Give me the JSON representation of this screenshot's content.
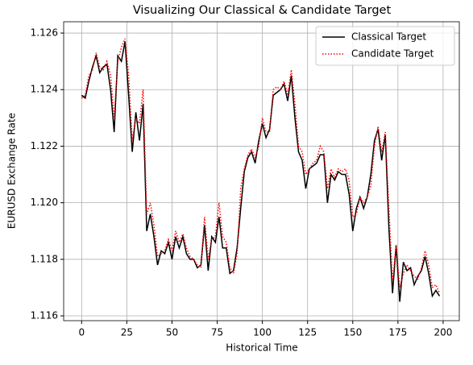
{
  "chart_data": {
    "type": "line",
    "title": "Visualizing Our Classical & Candidate Target",
    "x_label": "Historical Time",
    "y_label": "EURUSD Exchange Rate",
    "x": [
      0,
      2,
      4,
      6,
      8,
      10,
      12,
      14,
      16,
      18,
      20,
      22,
      24,
      26,
      28,
      30,
      32,
      34,
      36,
      38,
      40,
      42,
      44,
      46,
      48,
      50,
      52,
      54,
      56,
      58,
      60,
      62,
      64,
      66,
      68,
      70,
      72,
      74,
      76,
      78,
      80,
      82,
      84,
      86,
      88,
      90,
      92,
      94,
      96,
      98,
      100,
      102,
      104,
      106,
      108,
      110,
      112,
      114,
      116,
      118,
      120,
      122,
      124,
      126,
      128,
      130,
      132,
      134,
      136,
      138,
      140,
      142,
      144,
      146,
      148,
      150,
      152,
      154,
      156,
      158,
      160,
      162,
      164,
      166,
      168,
      170,
      172,
      174,
      176,
      178,
      180,
      182,
      184,
      186,
      188,
      190,
      192,
      194,
      196,
      198
    ],
    "series": [
      {
        "name": "Classical Target",
        "color": "#000000",
        "linestyle": "solid",
        "values": [
          1.1238,
          1.1237,
          1.1243,
          1.1248,
          1.1252,
          1.1246,
          1.1248,
          1.1249,
          1.124,
          1.1225,
          1.1252,
          1.125,
          1.1257,
          1.1238,
          1.1218,
          1.1232,
          1.1222,
          1.1235,
          1.119,
          1.1196,
          1.1188,
          1.1178,
          1.1183,
          1.1182,
          1.1186,
          1.118,
          1.1188,
          1.1184,
          1.1188,
          1.1182,
          1.118,
          1.118,
          1.1177,
          1.1178,
          1.1192,
          1.1176,
          1.1188,
          1.1186,
          1.1195,
          1.1184,
          1.1184,
          1.1175,
          1.1176,
          1.1184,
          1.1198,
          1.1211,
          1.1216,
          1.1218,
          1.1214,
          1.1222,
          1.1228,
          1.1223,
          1.1226,
          1.1238,
          1.1239,
          1.124,
          1.1242,
          1.1236,
          1.1245,
          1.123,
          1.1218,
          1.1215,
          1.1205,
          1.1212,
          1.1213,
          1.1214,
          1.1217,
          1.1217,
          1.12,
          1.121,
          1.1208,
          1.1211,
          1.121,
          1.121,
          1.1203,
          1.119,
          1.1198,
          1.1202,
          1.1198,
          1.1202,
          1.121,
          1.1222,
          1.1226,
          1.1215,
          1.1224,
          1.1191,
          1.1168,
          1.1185,
          1.1165,
          1.1179,
          1.1176,
          1.1177,
          1.1171,
          1.1174,
          1.1176,
          1.1181,
          1.1175,
          1.1167,
          1.1169,
          1.1167
        ]
      },
      {
        "name": "Candidate Target",
        "color": "#ff0000",
        "linestyle": "dotted",
        "values": [
          1.1237,
          1.1238,
          1.1245,
          1.1247,
          1.1253,
          1.1248,
          1.1247,
          1.125,
          1.1245,
          1.123,
          1.125,
          1.1255,
          1.1258,
          1.1245,
          1.1222,
          1.123,
          1.1228,
          1.124,
          1.1196,
          1.12,
          1.1192,
          1.1181,
          1.1182,
          1.1183,
          1.1187,
          1.1183,
          1.119,
          1.1186,
          1.1189,
          1.1184,
          1.1181,
          1.118,
          1.1178,
          1.1177,
          1.1195,
          1.118,
          1.1187,
          1.1188,
          1.12,
          1.1188,
          1.1186,
          1.1177,
          1.1175,
          1.1182,
          1.1205,
          1.1212,
          1.1217,
          1.1219,
          1.1216,
          1.122,
          1.123,
          1.1225,
          1.1225,
          1.124,
          1.1241,
          1.124,
          1.1243,
          1.1238,
          1.1247,
          1.1235,
          1.122,
          1.1218,
          1.121,
          1.1212,
          1.1214,
          1.1215,
          1.122,
          1.1218,
          1.1205,
          1.1212,
          1.1209,
          1.1212,
          1.1211,
          1.1212,
          1.1208,
          1.1195,
          1.1196,
          1.1202,
          1.12,
          1.1202,
          1.1206,
          1.122,
          1.1227,
          1.1218,
          1.1225,
          1.1198,
          1.1172,
          1.1185,
          1.117,
          1.1175,
          1.1178,
          1.1176,
          1.1174,
          1.1173,
          1.1177,
          1.1183,
          1.1178,
          1.117,
          1.1171,
          1.1168
        ]
      }
    ],
    "xlim": [
      -9.95,
      208.95
    ],
    "ylim": [
      1.11583,
      1.1264
    ],
    "xticks": [
      0,
      25,
      50,
      75,
      100,
      125,
      150,
      175,
      200
    ],
    "yticks": [
      1.116,
      1.118,
      {
        "value": 1.12,
        "label": "1.120"
      },
      1.122,
      1.124,
      1.126
    ],
    "grid": true,
    "legend": "upper right"
  }
}
